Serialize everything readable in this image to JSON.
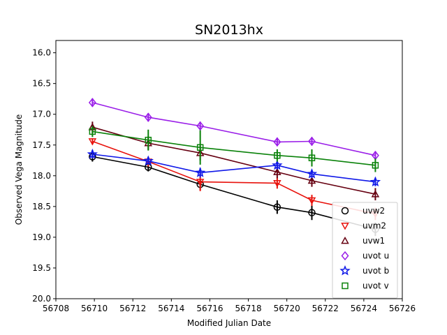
{
  "chart_data": {
    "type": "scatter",
    "title": "SN2013hx",
    "xlabel": "Modified Julian Date",
    "ylabel": "Observed Vega Magnitude",
    "xlim": [
      56708,
      56726
    ],
    "ylim": [
      20.0,
      15.8
    ],
    "y_inverted": true,
    "xticks": [
      "56708",
      "56710",
      "56712",
      "56714",
      "56716",
      "56718",
      "56720",
      "56722",
      "56724",
      "56726"
    ],
    "yticks": [
      "16.0",
      "16.5",
      "17.0",
      "17.5",
      "18.0",
      "18.5",
      "19.0",
      "19.5",
      "20.0"
    ],
    "grid": false,
    "legend_position": "lower-right",
    "series": [
      {
        "name": "uvw2",
        "color": "#000000",
        "marker": "circle",
        "x": [
          56709.9,
          56712.8,
          56715.5,
          56719.5,
          56721.3,
          56724.6
        ],
        "y": [
          17.69,
          17.86,
          18.14,
          18.51,
          18.6,
          18.87
        ],
        "err": [
          0.08,
          0.07,
          0.09,
          0.11,
          0.12,
          0.11
        ]
      },
      {
        "name": "uvm2",
        "color": "#e8120c",
        "marker": "triangle-down",
        "x": [
          56709.9,
          56712.8,
          56715.5,
          56719.5,
          56721.3,
          56724.6
        ],
        "y": [
          17.44,
          17.77,
          18.1,
          18.12,
          18.4,
          18.62
        ],
        "err": [
          0.05,
          0.08,
          0.15,
          0.09,
          0.09,
          0.1
        ]
      },
      {
        "name": "uvw1",
        "color": "#660011",
        "marker": "triangle-up",
        "x": [
          56709.9,
          56712.8,
          56715.5,
          56719.5,
          56721.3,
          56724.6
        ],
        "y": [
          17.21,
          17.47,
          17.63,
          17.94,
          18.08,
          18.3
        ],
        "err": [
          0.09,
          0.11,
          0.12,
          0.1,
          0.1,
          0.1
        ]
      },
      {
        "name": "uvot u",
        "color": "#9a1ee8",
        "marker": "diamond",
        "x": [
          56709.9,
          56712.8,
          56715.5,
          56719.5,
          56721.3,
          56724.6
        ],
        "y": [
          16.81,
          17.05,
          17.19,
          17.45,
          17.44,
          17.67
        ],
        "err": [
          0.07,
          0.07,
          0.07,
          0.07,
          0.07,
          0.07
        ]
      },
      {
        "name": "uvot b",
        "color": "#0f18e8",
        "marker": "star",
        "x": [
          56709.9,
          56712.8,
          56715.5,
          56719.5,
          56721.3,
          56724.6
        ],
        "y": [
          17.65,
          17.76,
          17.95,
          17.83,
          17.97,
          18.1
        ],
        "err": [
          0.07,
          0.06,
          0.08,
          0.07,
          0.07,
          0.07
        ]
      },
      {
        "name": "uvot v",
        "color": "#0a820a",
        "marker": "square",
        "x": [
          56709.9,
          56712.8,
          56715.5,
          56719.5,
          56721.3,
          56724.6
        ],
        "y": [
          17.28,
          17.42,
          17.54,
          17.67,
          17.71,
          17.83
        ],
        "err": [
          0.09,
          0.17,
          0.28,
          0.1,
          0.14,
          0.11
        ]
      }
    ]
  }
}
